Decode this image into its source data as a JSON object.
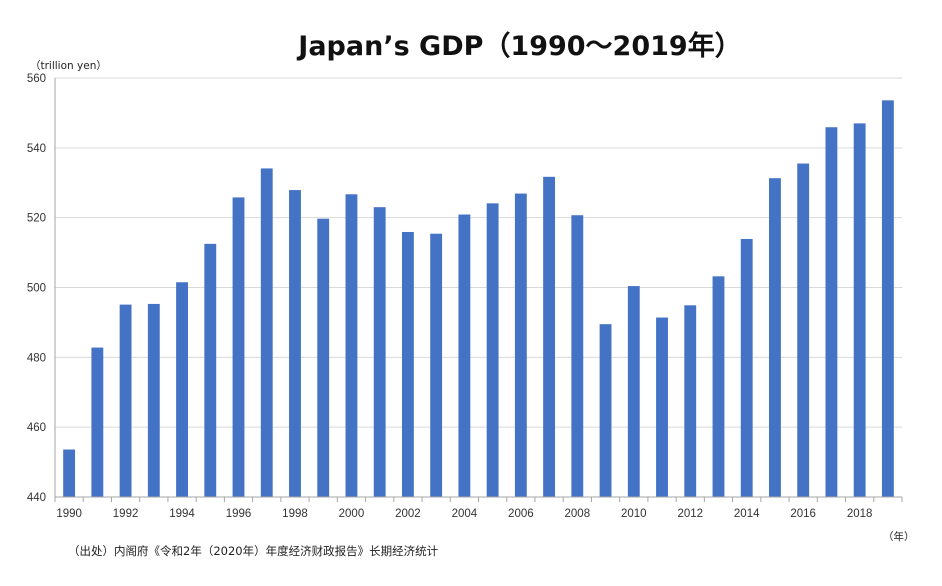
{
  "chart_data": {
    "type": "bar",
    "title": "Japan’s GDP（1990～2019年）",
    "ylabel": "（trillion yen）",
    "xlabel": "（年）",
    "source": "（出处）内阁府《令和2年（2020年）年度经济财政报告》长期经济统计",
    "ylim": [
      440,
      560
    ],
    "yticks": [
      440,
      460,
      480,
      500,
      520,
      540,
      560
    ],
    "xtick_labels": [
      "1990",
      "1992",
      "1994",
      "1996",
      "1998",
      "2000",
      "2002",
      "2004",
      "2006",
      "2008",
      "2010",
      "2012",
      "2014",
      "2016",
      "2018"
    ],
    "grid": true,
    "bar_color": "#4472C4",
    "categories": [
      "1990",
      "1991",
      "1992",
      "1993",
      "1994",
      "1995",
      "1996",
      "1997",
      "1998",
      "1999",
      "2000",
      "2001",
      "2002",
      "2003",
      "2004",
      "2005",
      "2006",
      "2007",
      "2008",
      "2009",
      "2010",
      "2011",
      "2012",
      "2013",
      "2014",
      "2015",
      "2016",
      "2017",
      "2018",
      "2019"
    ],
    "values": [
      453.6,
      482.8,
      495.1,
      495.3,
      501.5,
      512.5,
      525.8,
      534.1,
      527.9,
      519.7,
      526.7,
      523.0,
      515.9,
      515.4,
      520.9,
      524.1,
      526.9,
      531.7,
      520.7,
      489.5,
      500.4,
      491.4,
      494.9,
      503.2,
      513.9,
      531.3,
      535.5,
      545.9,
      547.0,
      553.6
    ]
  }
}
